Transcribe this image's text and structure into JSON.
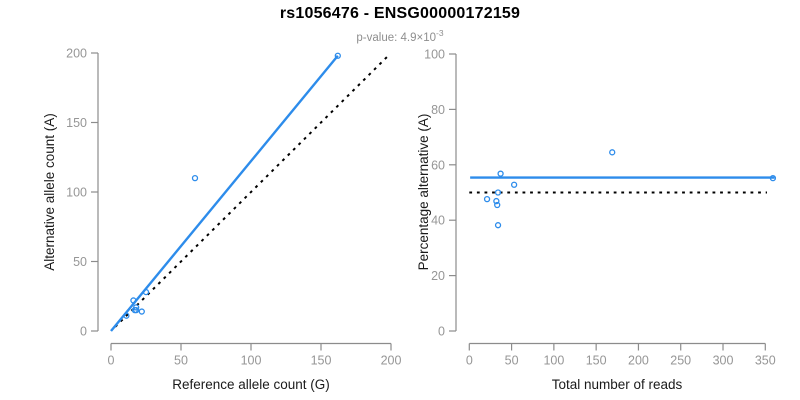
{
  "header": {
    "title": "rs1056476 - ENSG00000172159",
    "p_label": "p-value: 4.9×10",
    "p_exponent": "-3"
  },
  "colors": {
    "accent_blue": "#2D8CEB",
    "line_black": "#000000",
    "axis_gray": "#8C8C8C",
    "tick_label_gray": "#969696",
    "axis_title_black": "#1A1A1A"
  },
  "chart_data": [
    {
      "type": "scatter",
      "xlabel": "Reference allele count (G)",
      "ylabel": "Alternative allele count (A)",
      "xlim": [
        0,
        200
      ],
      "ylim": [
        0,
        200
      ],
      "xticks": [
        0,
        50,
        100,
        150,
        200
      ],
      "yticks": [
        0,
        50,
        100,
        150,
        200
      ],
      "grid": false,
      "legend": null,
      "points": [
        [
          11,
          11
        ],
        [
          16,
          22
        ],
        [
          17,
          15
        ],
        [
          18,
          17
        ],
        [
          18,
          15
        ],
        [
          22,
          14
        ],
        [
          25,
          28
        ],
        [
          60,
          110
        ],
        [
          162,
          198
        ]
      ],
      "lines": [
        {
          "name": "identity-reference-line",
          "x1": 3,
          "y1": 3,
          "x2": 199,
          "y2": 199,
          "style": "dotted",
          "color": "line_black"
        },
        {
          "name": "regression-fit-line",
          "x1": 0,
          "y1": 0,
          "x2": 162,
          "y2": 198,
          "style": "solid",
          "color": "accent_blue"
        }
      ]
    },
    {
      "type": "scatter",
      "xlabel": "Total number of reads",
      "ylabel": "Percentage alternative (A)",
      "xlim": [
        0,
        350
      ],
      "ylim": [
        0,
        100
      ],
      "xticks": [
        0,
        50,
        100,
        150,
        200,
        250,
        300,
        350
      ],
      "yticks": [
        0,
        20,
        40,
        60,
        80,
        100
      ],
      "grid": false,
      "legend": null,
      "points": [
        [
          21,
          47.6
        ],
        [
          32,
          46.9
        ],
        [
          33,
          45.5
        ],
        [
          34,
          50
        ],
        [
          34,
          38.2
        ],
        [
          37,
          56.8
        ],
        [
          53,
          52.8
        ],
        [
          169,
          64.5
        ],
        [
          359,
          55.2
        ]
      ],
      "lines": [
        {
          "name": "fifty-percent-reference-line",
          "x1": 0,
          "y1": 50,
          "x2": 352,
          "y2": 50,
          "style": "dotted",
          "color": "line_black"
        },
        {
          "name": "fitted-percentage-line",
          "x1": 1,
          "y1": 55.4,
          "x2": 361,
          "y2": 55.4,
          "style": "solid",
          "color": "accent_blue"
        }
      ]
    }
  ]
}
